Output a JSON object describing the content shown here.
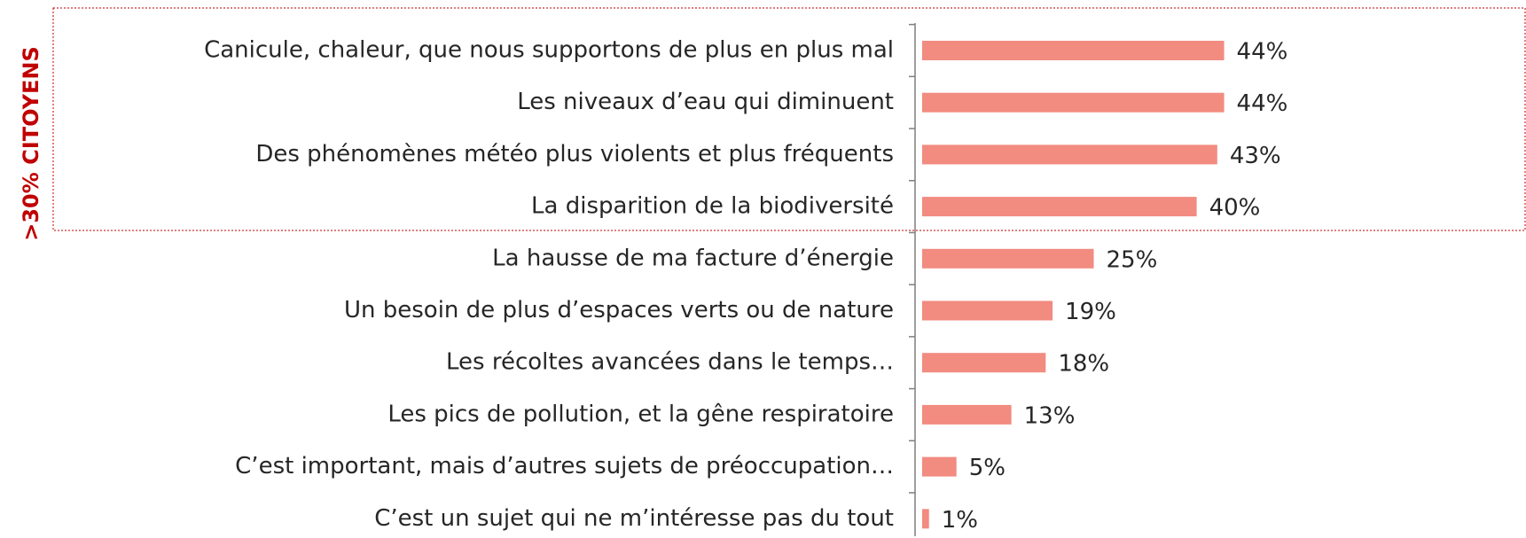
{
  "chart_data": {
    "type": "barh",
    "annotation": ">30% CITOYENS",
    "categories": [
      "Canicule, chaleur, que nous supportons de plus en plus mal",
      "Les niveaux d’eau qui diminuent",
      "Des phénomènes météo plus violents et plus fréquents",
      "La disparition de la biodiversité",
      "La hausse de ma facture d’énergie",
      "Un besoin de plus d’espaces verts ou de nature",
      "Les récoltes avancées dans le temps…",
      "Les pics de pollution, et la gêne respiratoire",
      "C’est important, mais d’autres sujets de préoccupation…",
      "C’est un sujet qui ne m’intéresse pas du tout"
    ],
    "values": [
      44,
      44,
      43,
      40,
      25,
      19,
      18,
      13,
      5,
      1
    ],
    "value_labels": [
      "44%",
      "44%",
      "43%",
      "40%",
      "25%",
      "19%",
      "18%",
      "13%",
      "5%",
      "1%"
    ],
    "color": "#f28b80"
  }
}
